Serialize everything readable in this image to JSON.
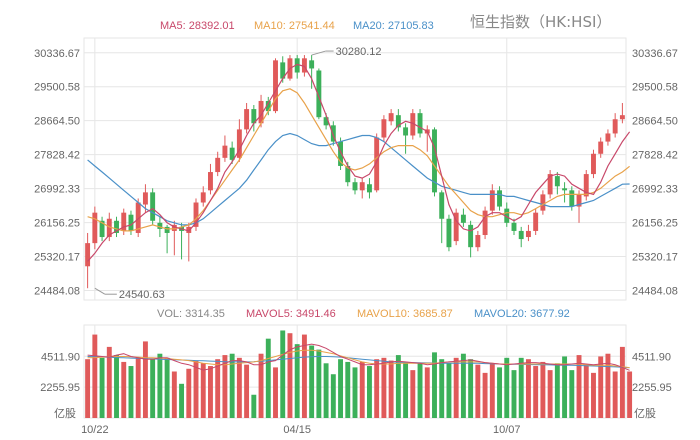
{
  "title": "恒生指数（HK:HSI）",
  "colors": {
    "up": "#e05a5a",
    "down": "#3cb05a",
    "ma5": "#c8486a",
    "ma10": "#e8a24a",
    "ma20": "#4a90c8",
    "grid": "#e6e6e6",
    "text": "#666666"
  },
  "chart_data": [
    {
      "type": "candlestick",
      "legend": [
        {
          "label": "MA5: 28392.01",
          "color": "#c8486a"
        },
        {
          "label": "MA10: 27541.44",
          "color": "#e8a24a"
        },
        {
          "label": "MA20: 27105.83",
          "color": "#4a90c8"
        }
      ],
      "ylim": [
        24250,
        30700
      ],
      "y_ticks": [
        "30336.67",
        "29500.58",
        "28664.50",
        "27828.42",
        "26992.33",
        "26156.25",
        "25320.17",
        "24484.08"
      ],
      "x_ticks": [
        {
          "index": 1,
          "label": "10/22"
        },
        {
          "index": 29,
          "label": "04/15"
        },
        {
          "index": 58,
          "label": "10/07"
        }
      ],
      "annotations": [
        {
          "index": 31,
          "value": 30280.12,
          "label": "30280.12",
          "side": "high"
        },
        {
          "index": 1,
          "value": 24540.63,
          "label": "24540.63",
          "side": "low"
        }
      ],
      "candles": [
        [
          25080,
          25650,
          24540,
          25900
        ],
        [
          25650,
          26400,
          25500,
          26550
        ],
        [
          26200,
          25800,
          25700,
          26300
        ],
        [
          25800,
          26250,
          25700,
          26400
        ],
        [
          26200,
          25900,
          25800,
          26300
        ],
        [
          25950,
          26400,
          25850,
          26500
        ],
        [
          26350,
          25950,
          25850,
          26450
        ],
        [
          25900,
          26650,
          25800,
          26750
        ],
        [
          26600,
          26900,
          26400,
          27100
        ],
        [
          26900,
          26200,
          26100,
          27000
        ],
        [
          26150,
          26000,
          25800,
          26300
        ],
        [
          26050,
          25900,
          25400,
          26100
        ],
        [
          25950,
          26100,
          25350,
          26200
        ],
        [
          26050,
          25950,
          25250,
          26150
        ],
        [
          25900,
          26050,
          25200,
          26150
        ],
        [
          26050,
          26650,
          25950,
          26750
        ],
        [
          26650,
          26900,
          26550,
          27050
        ],
        [
          26950,
          27400,
          26850,
          27600
        ],
        [
          27400,
          27750,
          27300,
          27900
        ],
        [
          27750,
          28050,
          27650,
          28300
        ],
        [
          28000,
          27700,
          27600,
          28150
        ],
        [
          27750,
          28450,
          27650,
          28700
        ],
        [
          28450,
          28950,
          28350,
          29100
        ],
        [
          28950,
          28600,
          28400,
          29050
        ],
        [
          28600,
          29150,
          28500,
          29300
        ],
        [
          29150,
          28900,
          28800,
          29250
        ],
        [
          28900,
          30150,
          28850,
          30200
        ],
        [
          30100,
          29700,
          29600,
          30250
        ],
        [
          29700,
          30200,
          29650,
          30280
        ],
        [
          30200,
          29850,
          29700,
          30280
        ],
        [
          29850,
          30200,
          29750,
          30280
        ],
        [
          30150,
          29950,
          29450,
          30280
        ],
        [
          29900,
          28750,
          28700,
          29950
        ],
        [
          28750,
          28550,
          28450,
          28850
        ],
        [
          28550,
          28150,
          28050,
          28650
        ],
        [
          28150,
          27550,
          27450,
          28250
        ],
        [
          27550,
          27150,
          27050,
          27650
        ],
        [
          27150,
          26950,
          26850,
          27250
        ],
        [
          26950,
          27150,
          26750,
          27250
        ],
        [
          27100,
          26900,
          26750,
          27250
        ],
        [
          26950,
          28250,
          26900,
          28350
        ],
        [
          28250,
          28700,
          28150,
          28800
        ],
        [
          28650,
          28850,
          28550,
          28950
        ],
        [
          28800,
          28500,
          28400,
          28950
        ],
        [
          28500,
          28300,
          27850,
          28600
        ],
        [
          28300,
          28850,
          28200,
          28950
        ],
        [
          28850,
          28350,
          28250,
          28950
        ],
        [
          28350,
          28450,
          27900,
          28550
        ],
        [
          28450,
          26900,
          26800,
          28500
        ],
        [
          26900,
          26250,
          25650,
          26950
        ],
        [
          26250,
          25550,
          25450,
          26350
        ]
      ],
      "candles_b": [
        [
          25700,
          26400,
          25600,
          26500
        ],
        [
          26350,
          26150,
          26050,
          26500
        ],
        [
          26100,
          25550,
          25300,
          26200
        ],
        [
          25550,
          25850,
          25450,
          25950
        ],
        [
          25850,
          26450,
          25750,
          26550
        ],
        [
          26450,
          26950,
          26350,
          27100
        ],
        [
          26950,
          26550,
          26450,
          27050
        ],
        [
          26500,
          26150,
          26050,
          26650
        ],
        [
          26150,
          25950,
          25850,
          26250
        ],
        [
          25950,
          25750,
          25550,
          26050
        ],
        [
          25800,
          25950,
          25700,
          26100
        ],
        [
          25950,
          26400,
          25850,
          26500
        ],
        [
          26450,
          26850,
          26350,
          26950
        ],
        [
          26850,
          27350,
          26750,
          27450
        ],
        [
          27300,
          27050,
          26850,
          27400
        ],
        [
          27000,
          26950,
          26650,
          27150
        ],
        [
          26950,
          26550,
          26450,
          27050
        ],
        [
          26550,
          26850,
          26150,
          26950
        ],
        [
          26800,
          27350,
          26700,
          27450
        ],
        [
          27350,
          27850,
          27250,
          27950
        ],
        [
          27850,
          28150,
          27750,
          28250
        ],
        [
          28150,
          28350,
          28050,
          28450
        ],
        [
          28350,
          28700,
          28250,
          28850
        ],
        [
          28700,
          28800,
          28600,
          29100
        ]
      ],
      "ma5": [
        25200,
        25400,
        25650,
        25850,
        25950,
        26050,
        26100,
        26250,
        26400,
        26500,
        26350,
        26150,
        26050,
        26000,
        25950,
        26150,
        26400,
        26700,
        27000,
        27400,
        27650,
        27950,
        28300,
        28600,
        28800,
        29100,
        29400,
        29700,
        29950,
        30050,
        30000,
        29700,
        29250,
        28800,
        28300,
        27900,
        27550,
        27300,
        27250,
        27350,
        27650,
        28050,
        28350,
        28550,
        28650,
        28600,
        28500,
        28400,
        28000,
        27300,
        26600,
        26200,
        26000,
        25950,
        26050,
        26300,
        26400,
        26400,
        26300,
        26200,
        26300,
        26600,
        26900,
        27100,
        27300,
        27350,
        27300,
        27100,
        27000,
        26900,
        26850,
        27150,
        27550,
        27850,
        28150,
        28392
      ],
      "ma10": [
        26300,
        26250,
        26150,
        26050,
        26000,
        25950,
        25950,
        26000,
        26050,
        26100,
        26050,
        26000,
        26000,
        26050,
        26100,
        26250,
        26450,
        26700,
        26950,
        27200,
        27450,
        27700,
        28000,
        28300,
        28600,
        28900,
        29200,
        29400,
        29450,
        29350,
        29100,
        28800,
        28500,
        28200,
        27900,
        27650,
        27500,
        27450,
        27500,
        27600,
        27750,
        27900,
        28000,
        28050,
        28050,
        28050,
        27950,
        27800,
        27550,
        27300,
        27050,
        26850,
        26650,
        26450,
        26350,
        26300,
        26300,
        26350,
        26400,
        26400,
        26350,
        26400,
        26500,
        26600,
        26700,
        26800,
        26850,
        26850,
        26850,
        26850,
        26900,
        27000,
        27150,
        27300,
        27400,
        27541
      ],
      "ma20": [
        27700,
        27550,
        27400,
        27250,
        27100,
        26950,
        26800,
        26650,
        26500,
        26400,
        26300,
        26200,
        26150,
        26100,
        26100,
        26150,
        26250,
        26400,
        26550,
        26700,
        26850,
        27000,
        27200,
        27450,
        27700,
        27950,
        28150,
        28300,
        28350,
        28300,
        28200,
        28100,
        28050,
        28050,
        28100,
        28150,
        28200,
        28250,
        28300,
        28300,
        28250,
        28150,
        28000,
        27850,
        27700,
        27550,
        27400,
        27250,
        27150,
        27050,
        27000,
        26950,
        26900,
        26850,
        26850,
        26850,
        26850,
        26850,
        26800,
        26800,
        26750,
        26700,
        26650,
        26600,
        26550,
        26550,
        26550,
        26550,
        26600,
        26650,
        26700,
        26800,
        26900,
        27000,
        27100,
        27106
      ]
    },
    {
      "type": "bar",
      "legend": [
        {
          "label": "VOL: 3314.35",
          "color": "#888888"
        },
        {
          "label": "MAVOL5: 3491.46",
          "color": "#c8486a"
        },
        {
          "label": "MAVOL10: 3685.87",
          "color": "#e8a24a"
        },
        {
          "label": "MAVOL20: 3677.92",
          "color": "#4a90c8"
        }
      ],
      "ylim": [
        0,
        6800
      ],
      "y_ticks": [
        "4511.90",
        "2255.95"
      ],
      "unit_label": "亿股",
      "volumes": [
        4300,
        6100,
        4400,
        5200,
        4600,
        4100,
        3800,
        4400,
        5600,
        4300,
        4700,
        4400,
        3400,
        2500,
        3600,
        4200,
        4000,
        3800,
        4300,
        4600,
        4700,
        4400,
        3900,
        1700,
        4700,
        5800,
        3700,
        6400,
        6200,
        5400,
        6100,
        5300,
        5000,
        4000,
        3200,
        4300,
        4100,
        3700,
        4100,
        3800,
        4300,
        4400,
        4200,
        4600,
        4000,
        3500,
        4000,
        3700,
        4800,
        4300,
        4000,
        4400,
        4700,
        4300,
        3900,
        3300,
        4000,
        3700,
        4400,
        3500,
        4400,
        4300,
        3800,
        4100,
        3500,
        4000,
        4500,
        3500,
        4600,
        3900,
        3300,
        4500,
        4700,
        3400,
        5200,
        3400
      ],
      "mavol5": [
        4600,
        4550,
        4500,
        4450,
        4600,
        4700,
        4500,
        4400,
        4300,
        4300,
        4400,
        4400,
        4200,
        4000,
        3900,
        3700,
        3500,
        3600,
        3800,
        4000,
        4200,
        4200,
        4100,
        3900,
        3900,
        4100,
        4200,
        4600,
        5000,
        5200,
        5300,
        5400,
        5300,
        5100,
        4800,
        4500,
        4300,
        4100,
        3900,
        3900,
        3950,
        4000,
        4100,
        4150,
        4100,
        4050,
        4000,
        3900,
        3950,
        4050,
        4100,
        4150,
        4200,
        4250,
        4150,
        4050,
        4000,
        3950,
        3900,
        3950,
        4000,
        4050,
        4050,
        4000,
        3950,
        3900,
        3900,
        3950,
        4000,
        3950,
        3900,
        3950,
        4000,
        3900,
        3700,
        3491
      ],
      "mavol10": [
        4400,
        4420,
        4450,
        4480,
        4500,
        4500,
        4480,
        4450,
        4420,
        4400,
        4380,
        4350,
        4300,
        4250,
        4200,
        4100,
        4000,
        3950,
        3900,
        3900,
        3950,
        4000,
        4050,
        4100,
        4200,
        4350,
        4500,
        4650,
        4800,
        4900,
        4950,
        4950,
        4900,
        4800,
        4700,
        4550,
        4400,
        4250,
        4100,
        4000,
        3950,
        3950,
        3950,
        4000,
        4000,
        4000,
        4000,
        4000,
        4000,
        4050,
        4100,
        4100,
        4100,
        4100,
        4100,
        4050,
        4000,
        3950,
        3950,
        3950,
        3950,
        3950,
        3950,
        3950,
        3950,
        3950,
        3950,
        3950,
        3950,
        3900,
        3850,
        3850,
        3850,
        3800,
        3750,
        3686
      ],
      "mavol20": [
        4500,
        4480,
        4460,
        4440,
        4420,
        4400,
        4380,
        4360,
        4340,
        4320,
        4300,
        4280,
        4260,
        4240,
        4220,
        4200,
        4180,
        4160,
        4140,
        4120,
        4100,
        4100,
        4100,
        4120,
        4150,
        4200,
        4250,
        4300,
        4350,
        4400,
        4450,
        4480,
        4500,
        4500,
        4480,
        4450,
        4400,
        4350,
        4300,
        4250,
        4200,
        4150,
        4100,
        4080,
        4060,
        4050,
        4040,
        4030,
        4020,
        4010,
        4000,
        4000,
        4000,
        4000,
        4000,
        3980,
        3960,
        3950,
        3940,
        3930,
        3920,
        3910,
        3900,
        3890,
        3880,
        3870,
        3860,
        3850,
        3840,
        3820,
        3800,
        3780,
        3760,
        3740,
        3710,
        3678
      ]
    }
  ]
}
